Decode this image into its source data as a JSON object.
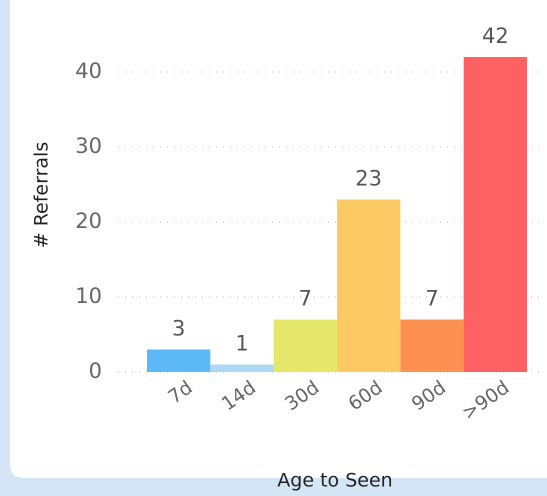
{
  "chart_data": {
    "type": "bar",
    "x_label": "Age to Seen",
    "y_label": "# Referrals",
    "categories": [
      "7d",
      "14d",
      "30d",
      "60d",
      "90d",
      ">90d"
    ],
    "values": [
      3,
      1,
      7,
      23,
      7,
      42
    ],
    "colors": [
      "#5cb9f6",
      "#acd7f5",
      "#e5e76a",
      "#fdc965",
      "#fd9151",
      "#fd6161"
    ],
    "ylim": [
      0,
      45
    ],
    "yticks": [
      0,
      10,
      20,
      30,
      40
    ],
    "grid": true
  }
}
